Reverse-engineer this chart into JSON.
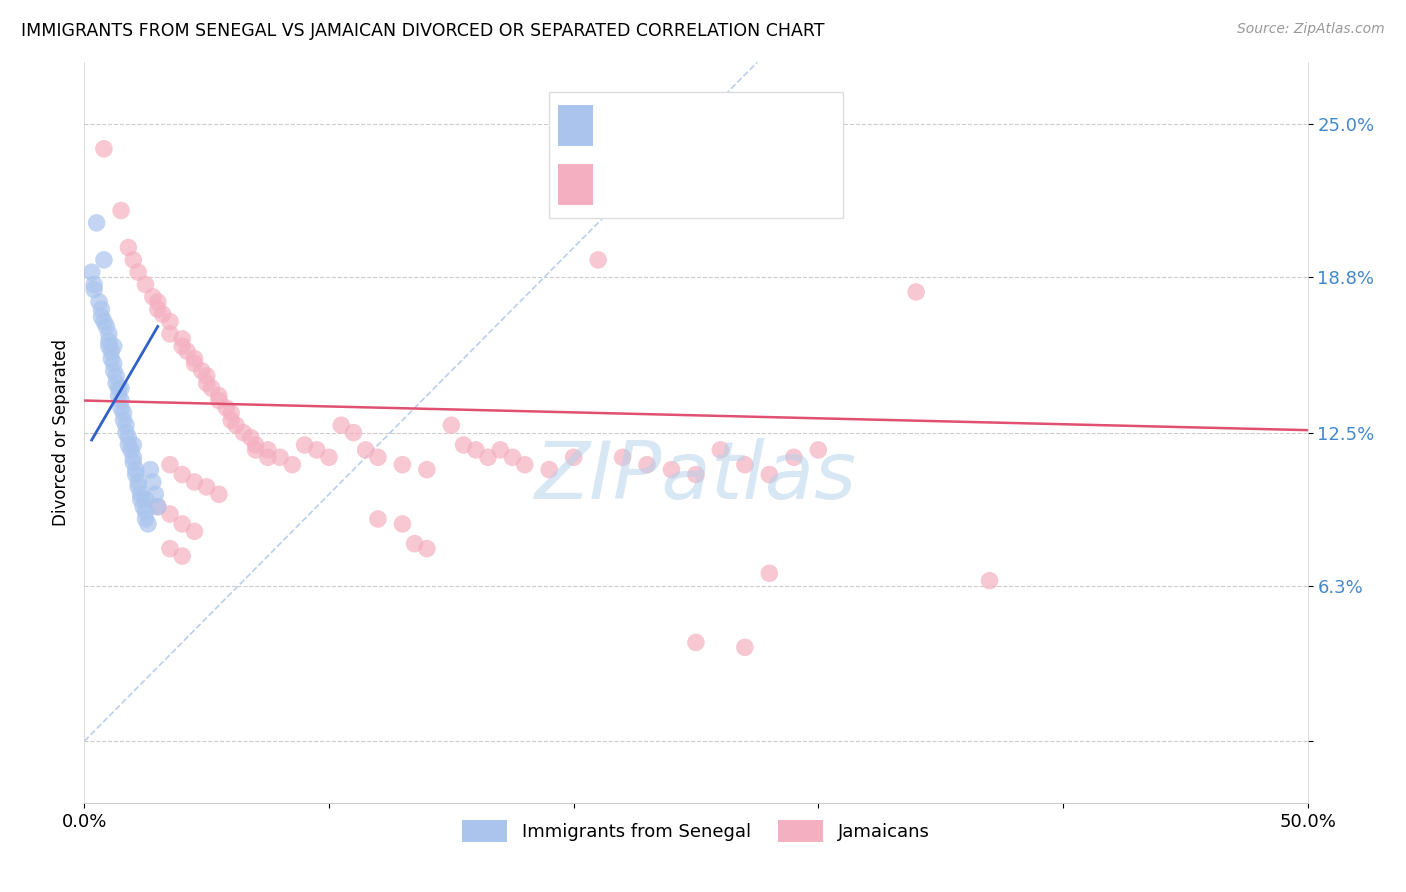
{
  "title": "IMMIGRANTS FROM SENEGAL VS JAMAICAN DIVORCED OR SEPARATED CORRELATION CHART",
  "source": "Source: ZipAtlas.com",
  "ylabel": "Divorced or Separated",
  "ytick_vals": [
    0.0,
    0.063,
    0.125,
    0.188,
    0.25
  ],
  "ytick_labels": [
    "",
    "6.3%",
    "12.5%",
    "18.8%",
    "25.0%"
  ],
  "xtick_vals": [
    0.0,
    0.1,
    0.2,
    0.3,
    0.4,
    0.5
  ],
  "xtick_labels": [
    "0.0%",
    "",
    "",
    "",
    "",
    "50.0%"
  ],
  "xlim": [
    0.0,
    0.5
  ],
  "ylim": [
    -0.025,
    0.275
  ],
  "blue_color": "#aac4ed",
  "pink_color": "#f4b0c0",
  "blue_line_color": "#3060c8",
  "pink_line_color": "#e05070",
  "diagonal_color": "#b8d0ee",
  "watermark": "ZIPatlas",
  "blue_scatter": [
    [
      0.003,
      0.19
    ],
    [
      0.004,
      0.185
    ],
    [
      0.004,
      0.183
    ],
    [
      0.005,
      0.21
    ],
    [
      0.006,
      0.178
    ],
    [
      0.007,
      0.175
    ],
    [
      0.007,
      0.172
    ],
    [
      0.008,
      0.17
    ],
    [
      0.009,
      0.168
    ],
    [
      0.01,
      0.165
    ],
    [
      0.01,
      0.162
    ],
    [
      0.01,
      0.16
    ],
    [
      0.011,
      0.158
    ],
    [
      0.011,
      0.155
    ],
    [
      0.012,
      0.153
    ],
    [
      0.012,
      0.15
    ],
    [
      0.013,
      0.148
    ],
    [
      0.013,
      0.145
    ],
    [
      0.014,
      0.143
    ],
    [
      0.014,
      0.14
    ],
    [
      0.015,
      0.138
    ],
    [
      0.015,
      0.135
    ],
    [
      0.016,
      0.133
    ],
    [
      0.016,
      0.13
    ],
    [
      0.017,
      0.128
    ],
    [
      0.017,
      0.125
    ],
    [
      0.018,
      0.123
    ],
    [
      0.018,
      0.12
    ],
    [
      0.019,
      0.118
    ],
    [
      0.02,
      0.115
    ],
    [
      0.02,
      0.113
    ],
    [
      0.021,
      0.11
    ],
    [
      0.021,
      0.108
    ],
    [
      0.022,
      0.105
    ],
    [
      0.022,
      0.103
    ],
    [
      0.023,
      0.1
    ],
    [
      0.023,
      0.098
    ],
    [
      0.024,
      0.095
    ],
    [
      0.025,
      0.093
    ],
    [
      0.025,
      0.09
    ],
    [
      0.026,
      0.088
    ],
    [
      0.027,
      0.11
    ],
    [
      0.028,
      0.105
    ],
    [
      0.029,
      0.1
    ],
    [
      0.03,
      0.095
    ],
    [
      0.008,
      0.195
    ],
    [
      0.012,
      0.16
    ],
    [
      0.015,
      0.143
    ],
    [
      0.02,
      0.12
    ],
    [
      0.025,
      0.098
    ]
  ],
  "pink_scatter": [
    [
      0.008,
      0.24
    ],
    [
      0.015,
      0.215
    ],
    [
      0.018,
      0.2
    ],
    [
      0.02,
      0.195
    ],
    [
      0.022,
      0.19
    ],
    [
      0.025,
      0.185
    ],
    [
      0.028,
      0.18
    ],
    [
      0.03,
      0.178
    ],
    [
      0.03,
      0.175
    ],
    [
      0.032,
      0.173
    ],
    [
      0.035,
      0.17
    ],
    [
      0.035,
      0.165
    ],
    [
      0.04,
      0.163
    ],
    [
      0.04,
      0.16
    ],
    [
      0.042,
      0.158
    ],
    [
      0.045,
      0.155
    ],
    [
      0.045,
      0.153
    ],
    [
      0.048,
      0.15
    ],
    [
      0.05,
      0.148
    ],
    [
      0.05,
      0.145
    ],
    [
      0.052,
      0.143
    ],
    [
      0.055,
      0.14
    ],
    [
      0.055,
      0.138
    ],
    [
      0.058,
      0.135
    ],
    [
      0.06,
      0.133
    ],
    [
      0.06,
      0.13
    ],
    [
      0.062,
      0.128
    ],
    [
      0.065,
      0.125
    ],
    [
      0.068,
      0.123
    ],
    [
      0.07,
      0.12
    ],
    [
      0.07,
      0.118
    ],
    [
      0.075,
      0.118
    ],
    [
      0.075,
      0.115
    ],
    [
      0.08,
      0.115
    ],
    [
      0.085,
      0.112
    ],
    [
      0.09,
      0.12
    ],
    [
      0.095,
      0.118
    ],
    [
      0.1,
      0.115
    ],
    [
      0.105,
      0.128
    ],
    [
      0.11,
      0.125
    ],
    [
      0.115,
      0.118
    ],
    [
      0.12,
      0.115
    ],
    [
      0.13,
      0.112
    ],
    [
      0.14,
      0.11
    ],
    [
      0.15,
      0.128
    ],
    [
      0.155,
      0.12
    ],
    [
      0.16,
      0.118
    ],
    [
      0.165,
      0.115
    ],
    [
      0.17,
      0.118
    ],
    [
      0.175,
      0.115
    ],
    [
      0.18,
      0.112
    ],
    [
      0.19,
      0.11
    ],
    [
      0.2,
      0.115
    ],
    [
      0.21,
      0.195
    ],
    [
      0.22,
      0.115
    ],
    [
      0.23,
      0.112
    ],
    [
      0.24,
      0.11
    ],
    [
      0.25,
      0.108
    ],
    [
      0.26,
      0.118
    ],
    [
      0.27,
      0.112
    ],
    [
      0.28,
      0.108
    ],
    [
      0.29,
      0.115
    ],
    [
      0.3,
      0.118
    ],
    [
      0.035,
      0.112
    ],
    [
      0.04,
      0.108
    ],
    [
      0.045,
      0.105
    ],
    [
      0.05,
      0.103
    ],
    [
      0.055,
      0.1
    ],
    [
      0.03,
      0.095
    ],
    [
      0.035,
      0.092
    ],
    [
      0.04,
      0.088
    ],
    [
      0.045,
      0.085
    ],
    [
      0.34,
      0.182
    ],
    [
      0.12,
      0.09
    ],
    [
      0.13,
      0.088
    ],
    [
      0.28,
      0.068
    ],
    [
      0.37,
      0.065
    ],
    [
      0.25,
      0.04
    ],
    [
      0.27,
      0.038
    ],
    [
      0.135,
      0.08
    ],
    [
      0.14,
      0.078
    ],
    [
      0.035,
      0.078
    ],
    [
      0.04,
      0.075
    ]
  ],
  "blue_trendline": [
    [
      0.003,
      0.122
    ],
    [
      0.03,
      0.168
    ]
  ],
  "pink_trendline": [
    [
      0.0,
      0.138
    ],
    [
      0.5,
      0.126
    ]
  ],
  "diagonal_line": [
    [
      0.0,
      0.0
    ],
    [
      0.275,
      0.275
    ]
  ]
}
